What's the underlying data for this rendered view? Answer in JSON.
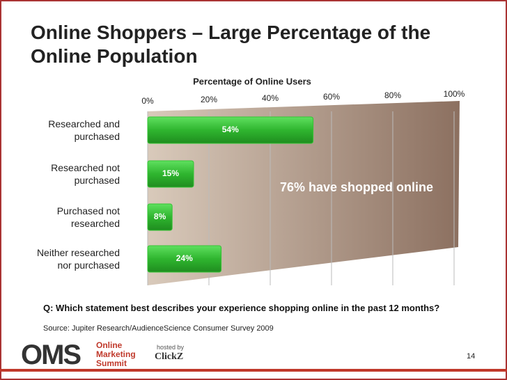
{
  "chart_data": {
    "type": "bar",
    "orientation": "horizontal",
    "title": "Online Shoppers – Large Percentage of the Online Population",
    "x_label": "Percentage of Online Users",
    "categories": [
      "Researched and purchased",
      "Researched not purchased",
      "Purchased not researched",
      "Neither researched nor purchased"
    ],
    "values": [
      54,
      15,
      8,
      24
    ],
    "value_labels": [
      "54%",
      "15%",
      "8%",
      "24%"
    ],
    "color": "#35c435",
    "xlim": [
      0,
      100
    ],
    "xticks": [
      {
        "value": 0,
        "label": "0%"
      },
      {
        "value": 20,
        "label": "20%"
      },
      {
        "value": 40,
        "label": "40%"
      },
      {
        "value": 60,
        "label": "60%"
      },
      {
        "value": 80,
        "label": "80%"
      },
      {
        "value": 100,
        "label": "100%"
      }
    ],
    "grid": true,
    "annotation": "76% have shopped online"
  },
  "slide": {
    "question": "Q:  Which statement best describes your experience shopping online in the past 12 months?",
    "source": "Source: Jupiter Research/AudienceScience Consumer Survey 2009",
    "logo": "OMS",
    "logo_text": "Online Marketing Summit",
    "hosted_by": "hosted by",
    "host": "ClickZ",
    "page_number": "14"
  }
}
